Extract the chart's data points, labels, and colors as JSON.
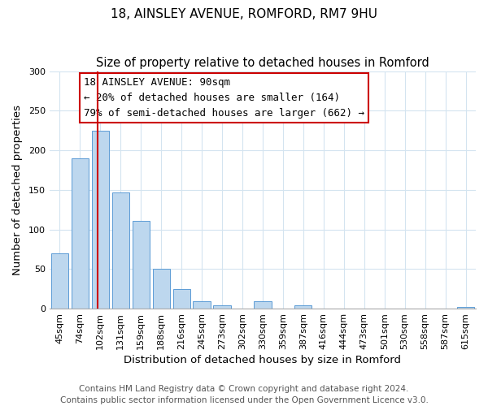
{
  "title": "18, AINSLEY AVENUE, ROMFORD, RM7 9HU",
  "subtitle": "Size of property relative to detached houses in Romford",
  "xlabel": "Distribution of detached houses by size in Romford",
  "ylabel": "Number of detached properties",
  "bar_labels": [
    "45sqm",
    "74sqm",
    "102sqm",
    "131sqm",
    "159sqm",
    "188sqm",
    "216sqm",
    "245sqm",
    "273sqm",
    "302sqm",
    "330sqm",
    "359sqm",
    "387sqm",
    "416sqm",
    "444sqm",
    "473sqm",
    "501sqm",
    "530sqm",
    "558sqm",
    "587sqm",
    "615sqm"
  ],
  "bar_values": [
    70,
    190,
    225,
    147,
    111,
    50,
    25,
    9,
    4,
    0,
    9,
    0,
    4,
    0,
    0,
    0,
    0,
    0,
    0,
    0,
    2
  ],
  "bar_color": "#bdd7ee",
  "bar_edge_color": "#5b9bd5",
  "ylim": [
    0,
    300
  ],
  "yticks": [
    0,
    50,
    100,
    150,
    200,
    250,
    300
  ],
  "redline_x": 1.85,
  "annotation_title": "18 AINSLEY AVENUE: 90sqm",
  "annotation_line1": "← 20% of detached houses are smaller (164)",
  "annotation_line2": "79% of semi-detached houses are larger (662) →",
  "annotation_box_color": "#ffffff",
  "annotation_box_edge": "#cc0000",
  "redline_color": "#cc0000",
  "footer_line1": "Contains HM Land Registry data © Crown copyright and database right 2024.",
  "footer_line2": "Contains public sector information licensed under the Open Government Licence v3.0.",
  "title_fontsize": 11,
  "axis_label_fontsize": 9.5,
  "tick_fontsize": 8,
  "footer_fontsize": 7.5,
  "annotation_fontsize": 9
}
